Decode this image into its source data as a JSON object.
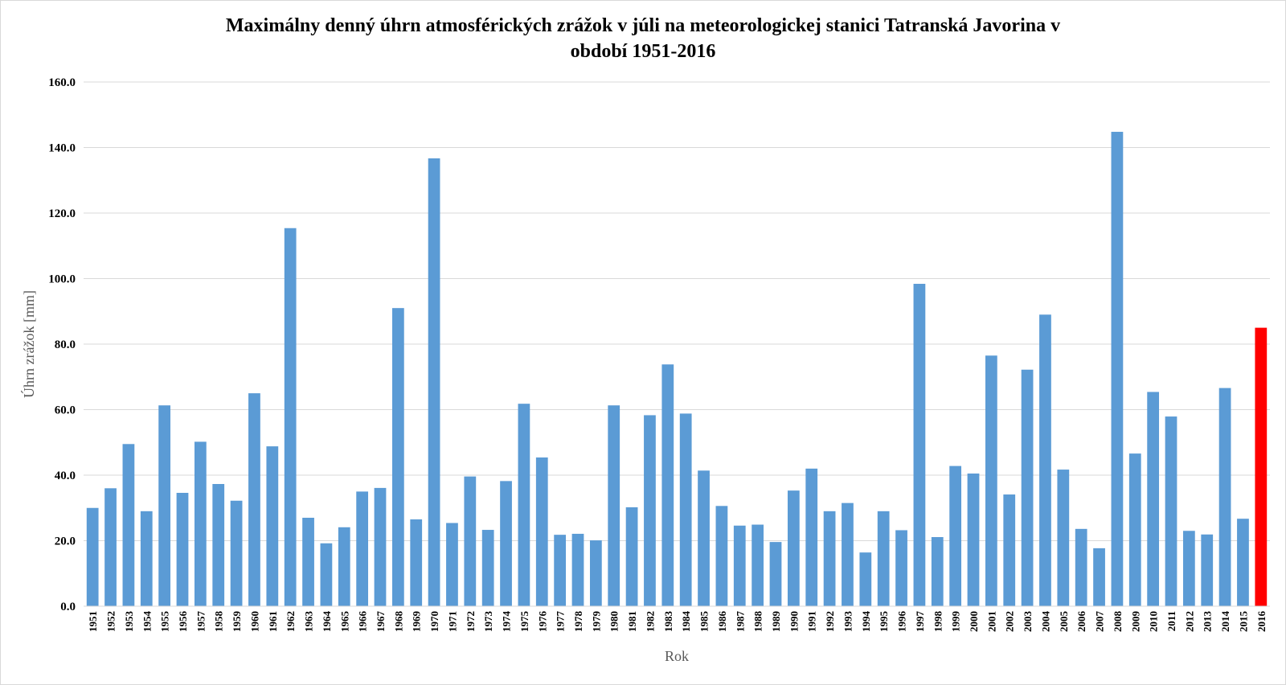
{
  "chart_data": {
    "type": "bar",
    "title_line1": "Maximálny denný úhrn atmosférických zrážok v júli na meteorologickej stanici Tatranská Javorina v",
    "title_line2": "období 1951-2016",
    "xlabel": "Rok",
    "ylabel": "Úhrn zrážok [mm]",
    "ylim": [
      0,
      160
    ],
    "yticks": [
      "0.0",
      "20.0",
      "40.0",
      "60.0",
      "80.0",
      "100.0",
      "120.0",
      "140.0",
      "160.0"
    ],
    "grid": "horizontal",
    "legend": "none",
    "colors": {
      "bar": "#5b9bd5",
      "highlight": "#ff0000",
      "grid": "#d9d9d9"
    },
    "highlight_category": "2016",
    "categories": [
      "1951",
      "1952",
      "1953",
      "1954",
      "1955",
      "1956",
      "1957",
      "1958",
      "1959",
      "1960",
      "1961",
      "1962",
      "1963",
      "1964",
      "1965",
      "1966",
      "1967",
      "1968",
      "1969",
      "1970",
      "1971",
      "1972",
      "1973",
      "1974",
      "1975",
      "1976",
      "1977",
      "1978",
      "1979",
      "1980",
      "1981",
      "1982",
      "1983",
      "1984",
      "1985",
      "1986",
      "1987",
      "1988",
      "1989",
      "1990",
      "1991",
      "1992",
      "1993",
      "1994",
      "1995",
      "1996",
      "1997",
      "1998",
      "1999",
      "2000",
      "2001",
      "2002",
      "2003",
      "2004",
      "2005",
      "2006",
      "2007",
      "2008",
      "2009",
      "2010",
      "2011",
      "2012",
      "2013",
      "2014",
      "2015",
      "2016"
    ],
    "values": [
      30.0,
      36.0,
      49.5,
      29.0,
      61.3,
      34.6,
      50.2,
      37.3,
      32.2,
      65.0,
      48.8,
      115.4,
      27.0,
      19.2,
      24.1,
      35.0,
      36.1,
      91.0,
      26.5,
      136.7,
      25.4,
      39.6,
      23.3,
      38.2,
      61.8,
      45.4,
      21.8,
      22.1,
      20.1,
      61.3,
      30.2,
      58.3,
      73.8,
      58.8,
      41.4,
      30.6,
      24.6,
      24.9,
      19.6,
      35.3,
      42.0,
      29.0,
      31.5,
      16.4,
      29.0,
      23.2,
      98.4,
      21.1,
      42.8,
      40.5,
      76.5,
      34.1,
      72.2,
      89.0,
      41.7,
      23.6,
      17.7,
      144.8,
      46.6,
      65.4,
      57.9,
      23.0,
      21.9,
      66.6,
      26.7,
      85.0
    ]
  }
}
